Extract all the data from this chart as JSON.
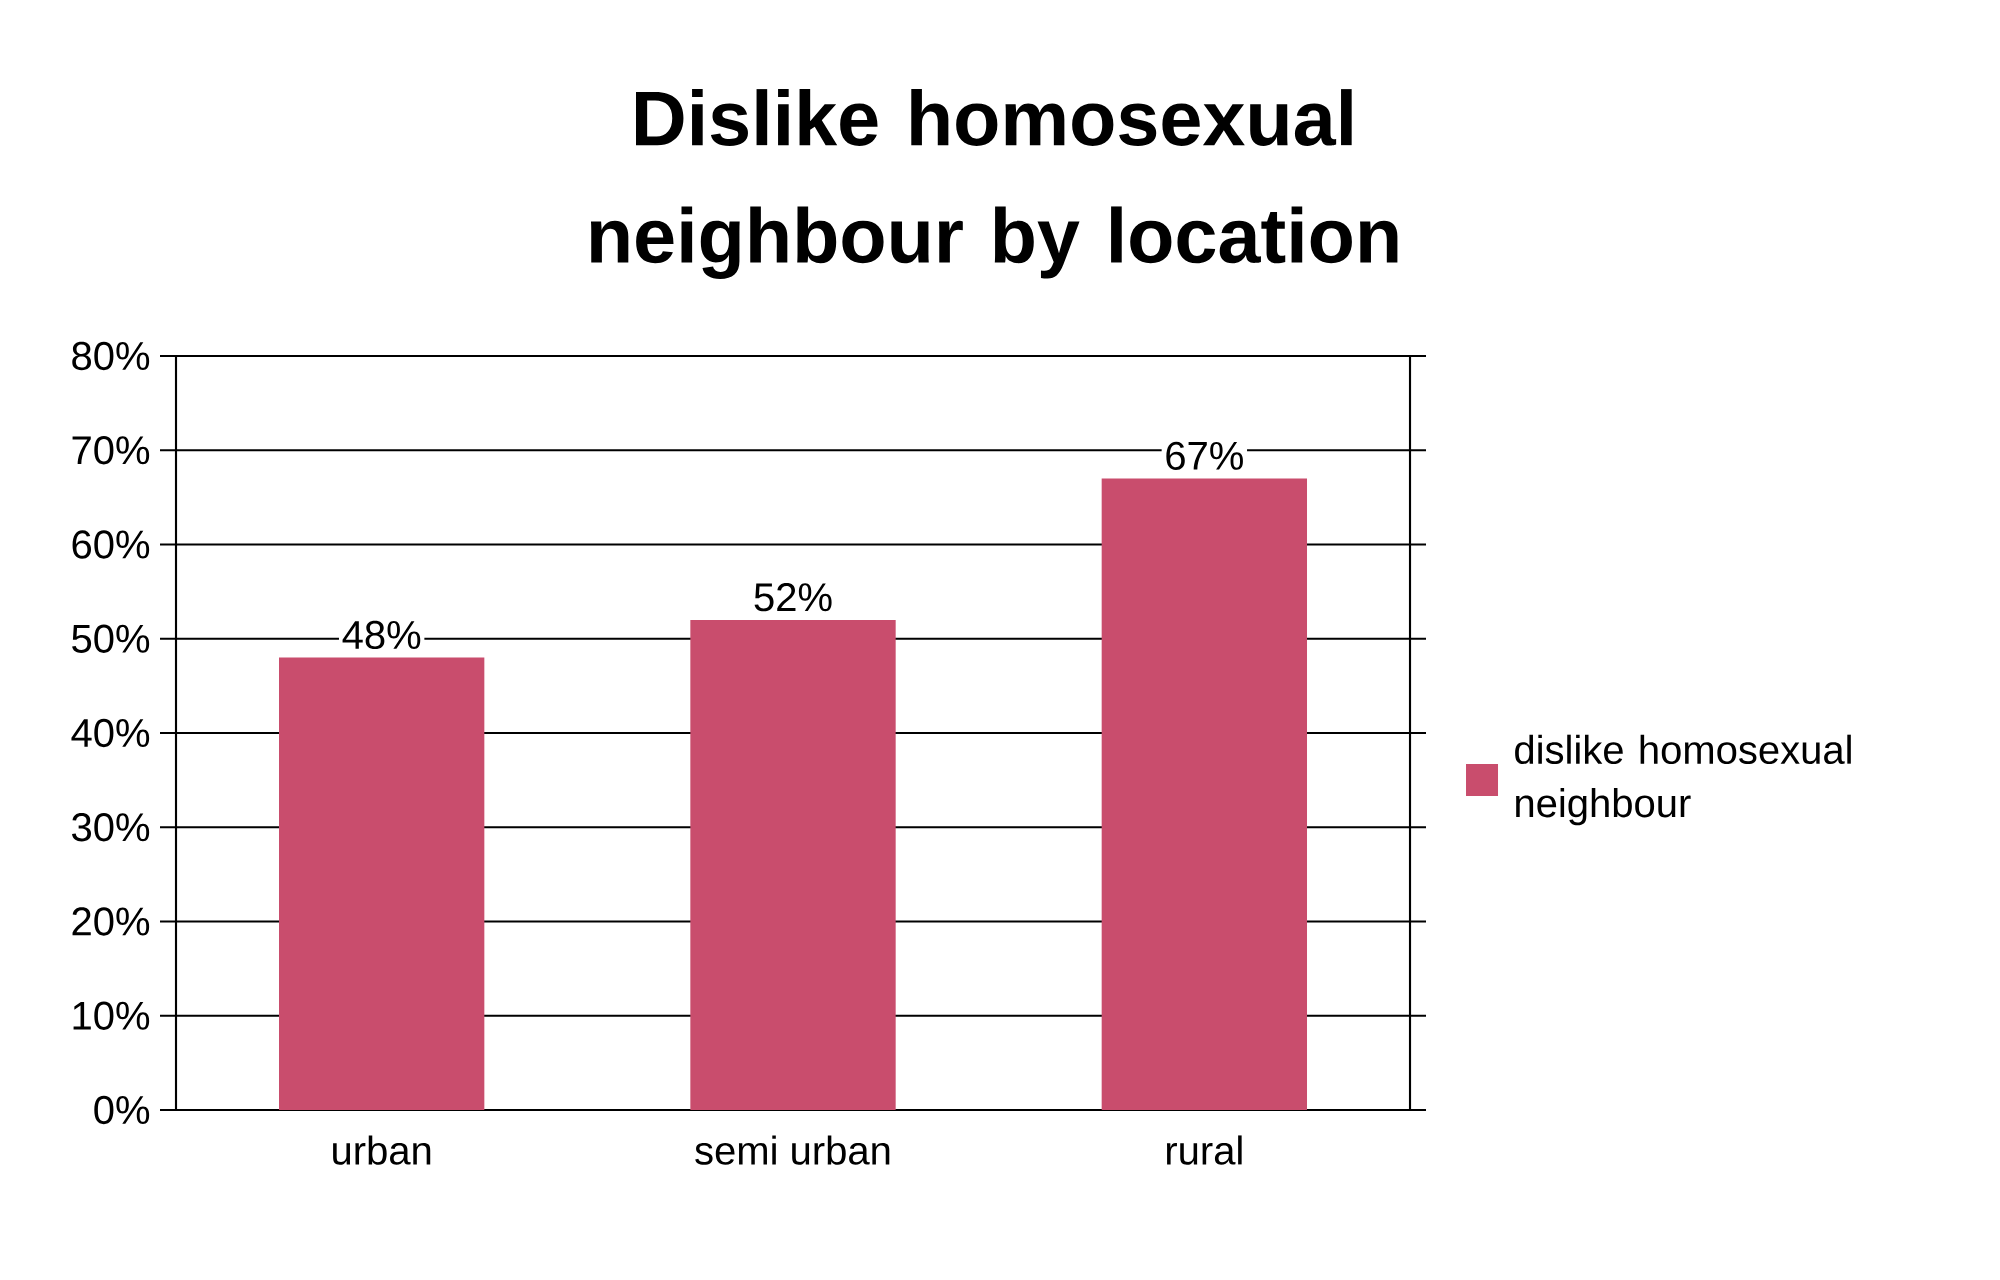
{
  "chart_data": {
    "type": "bar",
    "title": "Dislike homosexual neighbour by location",
    "categories": [
      "urban",
      "semi urban",
      "rural"
    ],
    "series": [
      {
        "name": "dislike homosexual neighbour",
        "color": "#c94d6d",
        "values": [
          48,
          52,
          67
        ],
        "value_labels": [
          "48%",
          "52%",
          "67%"
        ]
      }
    ],
    "ylim": [
      0,
      80
    ],
    "yticks": [
      {
        "value": 0,
        "label": "0%"
      },
      {
        "value": 10,
        "label": "10%"
      },
      {
        "value": 20,
        "label": "20%"
      },
      {
        "value": 30,
        "label": "30%"
      },
      {
        "value": 40,
        "label": "40%"
      },
      {
        "value": 50,
        "label": "50%"
      },
      {
        "value": 60,
        "label": "60%"
      },
      {
        "value": 70,
        "label": "70%"
      },
      {
        "value": 80,
        "label": "80%"
      }
    ],
    "grid": "y",
    "legend": "right"
  }
}
